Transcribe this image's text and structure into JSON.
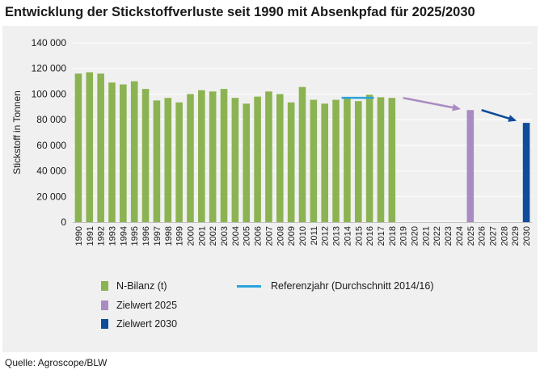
{
  "title": "Entwicklung der Stickstoffverluste seit 1990 mit Absenkpfad für 2025/2030",
  "source": "Quelle: Agroscope/BLW",
  "chart_data": {
    "type": "bar",
    "ylabel": "Stickstoff in Tonnen",
    "xlabel": "",
    "ylim": [
      0,
      140000
    ],
    "yticks": [
      0,
      20000,
      40000,
      60000,
      80000,
      100000,
      120000,
      140000
    ],
    "ytick_labels": [
      "0",
      "20 000",
      "40 000",
      "60 000",
      "80 000",
      "100 000",
      "120 000",
      "140 000"
    ],
    "grid": "horizontal",
    "categories": [
      "1990",
      "1991",
      "1992",
      "1993",
      "1994",
      "1995",
      "1996",
      "1997",
      "1998",
      "1999",
      "2000",
      "2001",
      "2002",
      "2003",
      "2004",
      "2005",
      "2006",
      "2007",
      "2008",
      "2009",
      "2010",
      "2011",
      "2012",
      "2013",
      "2014",
      "2015",
      "2016",
      "2017",
      "2018",
      "2019",
      "2020",
      "2021",
      "2022",
      "2023",
      "2024",
      "2025",
      "2026",
      "2027",
      "2028",
      "2029",
      "2030"
    ],
    "series": [
      {
        "name": "N-Bilanz (t)",
        "color": "#8cb352",
        "values": [
          116000,
          117000,
          116000,
          109000,
          107500,
          110000,
          104000,
          95000,
          97000,
          93500,
          100000,
          103000,
          102000,
          104000,
          97000,
          92500,
          98000,
          102000,
          100000,
          93500,
          105500,
          95500,
          92500,
          95500,
          97000,
          94500,
          99500,
          97500,
          97000,
          null,
          null,
          null,
          null,
          null,
          null,
          null,
          null,
          null,
          null,
          null,
          null
        ]
      },
      {
        "name": "Zielwert 2025",
        "color": "#a98ac2",
        "values": [
          null,
          null,
          null,
          null,
          null,
          null,
          null,
          null,
          null,
          null,
          null,
          null,
          null,
          null,
          null,
          null,
          null,
          null,
          null,
          null,
          null,
          null,
          null,
          null,
          null,
          null,
          null,
          null,
          null,
          null,
          null,
          null,
          null,
          null,
          null,
          87500,
          null,
          null,
          null,
          null,
          null
        ]
      },
      {
        "name": "Zielwert 2030",
        "color": "#0f4c9a",
        "values": [
          null,
          null,
          null,
          null,
          null,
          null,
          null,
          null,
          null,
          null,
          null,
          null,
          null,
          null,
          null,
          null,
          null,
          null,
          null,
          null,
          null,
          null,
          null,
          null,
          null,
          null,
          null,
          null,
          null,
          null,
          null,
          null,
          null,
          null,
          null,
          null,
          null,
          null,
          null,
          null,
          77500
        ]
      }
    ],
    "reference_line": {
      "name": "Referenzjahr (Durchschnitt 2014/16)",
      "color": "#2aa3dc",
      "value": 97000,
      "from": "2014",
      "to": "2016"
    },
    "arrows": [
      {
        "from": [
          "2019",
          97000
        ],
        "to": [
          "2024",
          88500
        ],
        "color": "#a98ac2"
      },
      {
        "from": [
          "2026",
          87500
        ],
        "to": [
          "2029",
          79500
        ],
        "color": "#0f4c9a"
      }
    ]
  }
}
